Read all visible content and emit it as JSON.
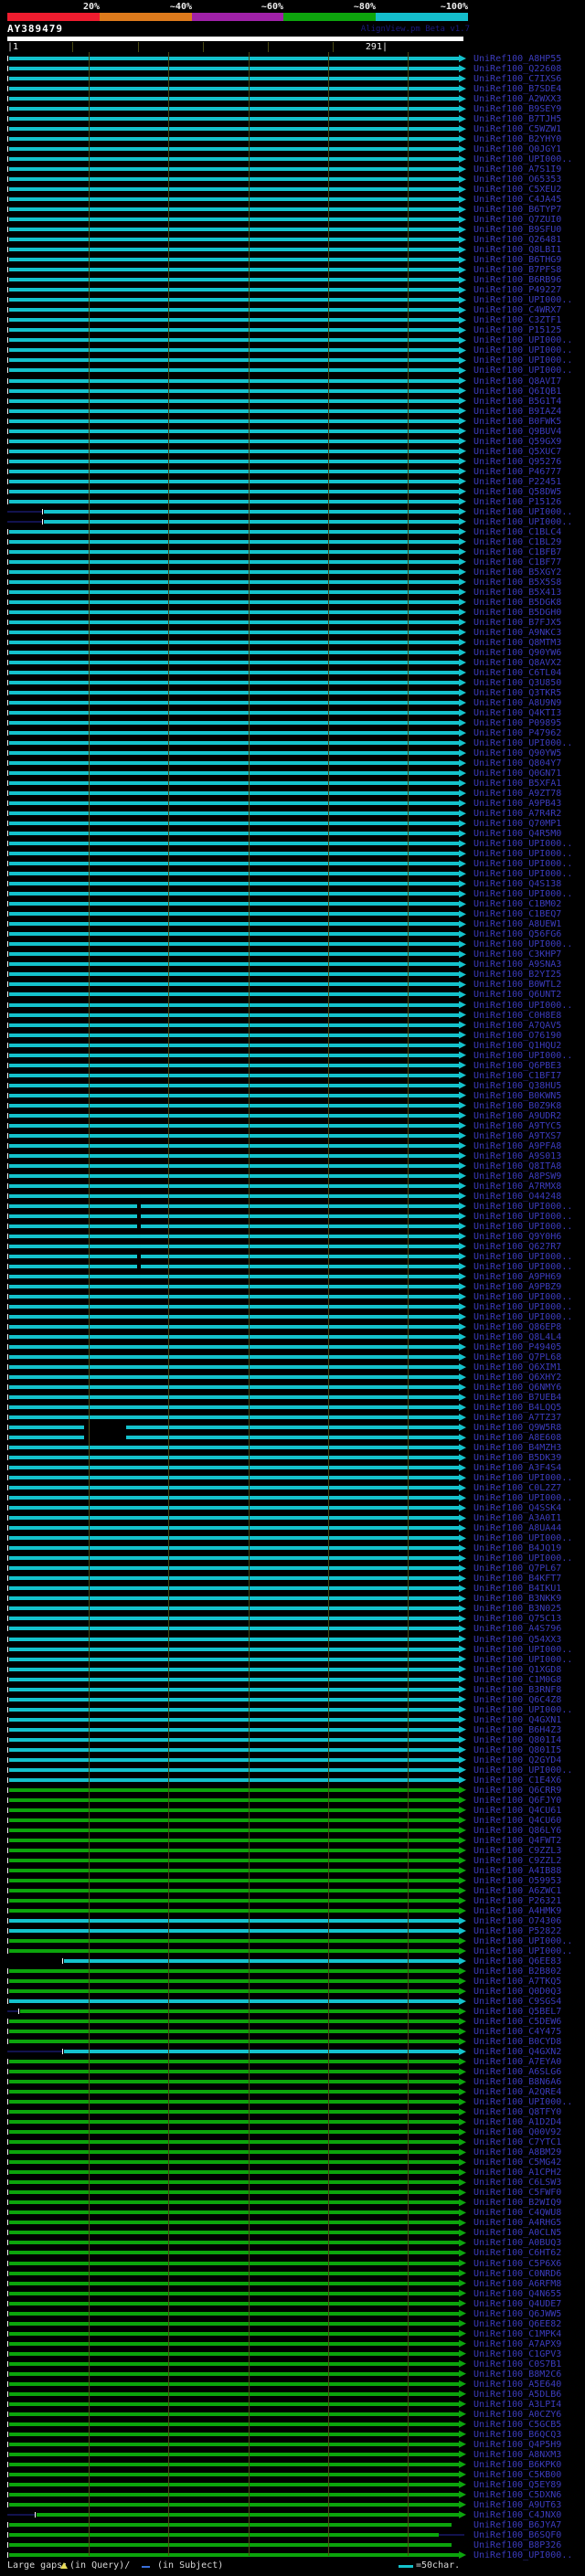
{
  "header": {
    "scale_labels": [
      "20%",
      "~40%",
      "~60%",
      "~80%",
      "~100%"
    ],
    "query_id": "AY389479",
    "credit": "AlignView.pm Beta v1.7",
    "ruler_start": "|1",
    "ruler_end": "291|"
  },
  "legend": {
    "large_gaps": "Large gaps:",
    "in_query": "(in Query)/",
    "in_subject": " (in Subject)",
    "scale_note": "=50char."
  },
  "colors": {
    "scale_red": "#EE1C2E",
    "scale_orange": "#DD7A1C",
    "scale_purple": "#A021A8",
    "scale_green": "#0DA40D",
    "scale_cyan": "#14BECC",
    "bar_cyan": "#14C2CC",
    "bar_green": "#0CA40C",
    "label_blue": "#3C3CBE",
    "credit_blue": "#1A1A7E",
    "grid_olive": "#4A4A14",
    "legend_text": "#D8D8D8",
    "gap_query_yellow": "#E8DC5A",
    "gap_subject_blue": "#3A6FD8",
    "lead_navy": "#12124E"
  },
  "rows": [
    {
      "label": "UniRef100_A8HP55",
      "color": "cyan"
    },
    {
      "label": "UniRef100_Q22608",
      "color": "cyan"
    },
    {
      "label": "UniRef100_C7IXS6",
      "color": "cyan"
    },
    {
      "label": "UniRef100_B7SDE4",
      "color": "cyan"
    },
    {
      "label": "UniRef100_A2WXX3",
      "color": "cyan"
    },
    {
      "label": "UniRef100_B9SEY9",
      "color": "cyan"
    },
    {
      "label": "UniRef100_B7TJH5",
      "color": "cyan"
    },
    {
      "label": "UniRef100_C5WZW1",
      "color": "cyan"
    },
    {
      "label": "UniRef100_B2YHY0",
      "color": "cyan"
    },
    {
      "label": "UniRef100_Q0JGY1",
      "color": "cyan"
    },
    {
      "label": "UniRef100_UPI000..",
      "color": "cyan"
    },
    {
      "label": "UniRef100_A7S1I9",
      "color": "cyan"
    },
    {
      "label": "UniRef100_O65353",
      "color": "cyan"
    },
    {
      "label": "UniRef100_C5XEU2",
      "color": "cyan"
    },
    {
      "label": "UniRef100_C4JA45",
      "color": "cyan"
    },
    {
      "label": "UniRef100_B6TYP7",
      "color": "cyan"
    },
    {
      "label": "UniRef100_Q7ZUI0",
      "color": "cyan"
    },
    {
      "label": "UniRef100_B9SFU0",
      "color": "cyan"
    },
    {
      "label": "UniRef100_Q26481",
      "color": "cyan"
    },
    {
      "label": "UniRef100_Q8LBI1",
      "color": "cyan"
    },
    {
      "label": "UniRef100_B6THG9",
      "color": "cyan"
    },
    {
      "label": "UniRef100_B7PFS8",
      "color": "cyan"
    },
    {
      "label": "UniRef100_B6RB96",
      "color": "cyan"
    },
    {
      "label": "UniRef100_P49227",
      "color": "cyan"
    },
    {
      "label": "UniRef100_UPI000..",
      "color": "cyan"
    },
    {
      "label": "UniRef100_C4WRX7",
      "color": "cyan"
    },
    {
      "label": "UniRef100_C3ZTF1",
      "color": "cyan"
    },
    {
      "label": "UniRef100_P15125",
      "color": "cyan"
    },
    {
      "label": "UniRef100_UPI000..",
      "color": "cyan"
    },
    {
      "label": "UniRef100_UPI000..",
      "color": "cyan"
    },
    {
      "label": "UniRef100_UPI000..",
      "color": "cyan"
    },
    {
      "label": "UniRef100_UPI000..",
      "color": "cyan"
    },
    {
      "label": "UniRef100_Q8AVI7",
      "color": "cyan"
    },
    {
      "label": "UniRef100_Q6IQB1",
      "color": "cyan"
    },
    {
      "label": "UniRef100_B5G1T4",
      "color": "cyan"
    },
    {
      "label": "UniRef100_B9IAZ4",
      "color": "cyan"
    },
    {
      "label": "UniRef100_B0FWK5",
      "color": "cyan"
    },
    {
      "label": "UniRef100_Q9BUV4",
      "color": "cyan"
    },
    {
      "label": "UniRef100_Q59GX9",
      "color": "cyan"
    },
    {
      "label": "UniRef100_Q5XUC7",
      "color": "cyan"
    },
    {
      "label": "UniRef100_Q95276",
      "color": "cyan"
    },
    {
      "label": "UniRef100_P46777",
      "color": "cyan"
    },
    {
      "label": "UniRef100_P22451",
      "color": "cyan"
    },
    {
      "label": "UniRef100_Q58DW5",
      "color": "cyan"
    },
    {
      "label": "UniRef100_P15126",
      "color": "cyan"
    },
    {
      "label": "UniRef100_UPI000..",
      "color": "cyan",
      "start": 48,
      "lead": true
    },
    {
      "label": "UniRef100_UPI000..",
      "color": "cyan",
      "start": 48,
      "lead": true
    },
    {
      "label": "UniRef100_C1BLC4",
      "color": "cyan"
    },
    {
      "label": "UniRef100_C1BL29",
      "color": "cyan"
    },
    {
      "label": "UniRef100_C1BFB7",
      "color": "cyan"
    },
    {
      "label": "UniRef100_C1BF77",
      "color": "cyan"
    },
    {
      "label": "UniRef100_B5XGY2",
      "color": "cyan"
    },
    {
      "label": "UniRef100_B5X5S8",
      "color": "cyan"
    },
    {
      "label": "UniRef100_B5X413",
      "color": "cyan"
    },
    {
      "label": "UniRef100_B5DGK8",
      "color": "cyan"
    },
    {
      "label": "UniRef100_B5DGH0",
      "color": "cyan"
    },
    {
      "label": "UniRef100_B7FJX5",
      "color": "cyan"
    },
    {
      "label": "UniRef100_A9NKC3",
      "color": "cyan"
    },
    {
      "label": "UniRef100_Q8MTM3",
      "color": "cyan"
    },
    {
      "label": "UniRef100_Q90YW6",
      "color": "cyan"
    },
    {
      "label": "UniRef100_Q8AVX2",
      "color": "cyan"
    },
    {
      "label": "UniRef100_C6TL04",
      "color": "cyan"
    },
    {
      "label": "UniRef100_Q3U850",
      "color": "cyan"
    },
    {
      "label": "UniRef100_Q3TKR5",
      "color": "cyan"
    },
    {
      "label": "UniRef100_A8U9N9",
      "color": "cyan"
    },
    {
      "label": "UniRef100_Q4KTI3",
      "color": "cyan"
    },
    {
      "label": "UniRef100_P09895",
      "color": "cyan"
    },
    {
      "label": "UniRef100_P47962",
      "color": "cyan"
    },
    {
      "label": "UniRef100_UPI000..",
      "color": "cyan"
    },
    {
      "label": "UniRef100_Q90YW5",
      "color": "cyan"
    },
    {
      "label": "UniRef100_Q804Y7",
      "color": "cyan"
    },
    {
      "label": "UniRef100_Q0GN71",
      "color": "cyan"
    },
    {
      "label": "UniRef100_B5XFA1",
      "color": "cyan"
    },
    {
      "label": "UniRef100_A9ZT78",
      "color": "cyan"
    },
    {
      "label": "UniRef100_A9PB43",
      "color": "cyan"
    },
    {
      "label": "UniRef100_A7R4R2",
      "color": "cyan"
    },
    {
      "label": "UniRef100_Q70MP1",
      "color": "cyan"
    },
    {
      "label": "UniRef100_Q4R5M0",
      "color": "cyan"
    },
    {
      "label": "UniRef100_UPI000..",
      "color": "cyan"
    },
    {
      "label": "UniRef100_UPI000..",
      "color": "cyan"
    },
    {
      "label": "UniRef100_UPI000..",
      "color": "cyan"
    },
    {
      "label": "UniRef100_UPI000..",
      "color": "cyan"
    },
    {
      "label": "UniRef100_Q4S138",
      "color": "cyan"
    },
    {
      "label": "UniRef100_UPI000..",
      "color": "cyan"
    },
    {
      "label": "UniRef100_C1BM02",
      "color": "cyan"
    },
    {
      "label": "UniRef100_C1BEQ7",
      "color": "cyan"
    },
    {
      "label": "UniRef100_A8UEW1",
      "color": "cyan"
    },
    {
      "label": "UniRef100_Q56FG6",
      "color": "cyan"
    },
    {
      "label": "UniRef100_UPI000..",
      "color": "cyan"
    },
    {
      "label": "UniRef100_C3KHP7",
      "color": "cyan"
    },
    {
      "label": "UniRef100_A9SNA3",
      "color": "cyan"
    },
    {
      "label": "UniRef100_B2YI25",
      "color": "cyan"
    },
    {
      "label": "UniRef100_B0WTL2",
      "color": "cyan"
    },
    {
      "label": "UniRef100_Q6UNT2",
      "color": "cyan"
    },
    {
      "label": "UniRef100_UPI000..",
      "color": "cyan"
    },
    {
      "label": "UniRef100_C0H8E8",
      "color": "cyan"
    },
    {
      "label": "UniRef100_A7QAV5",
      "color": "cyan"
    },
    {
      "label": "UniRef100_O76190",
      "color": "cyan"
    },
    {
      "label": "UniRef100_Q1HQU2",
      "color": "cyan"
    },
    {
      "label": "UniRef100_UPI000..",
      "color": "cyan"
    },
    {
      "label": "UniRef100_Q6PBE3",
      "color": "cyan"
    },
    {
      "label": "UniRef100_C1BFI7",
      "color": "cyan"
    },
    {
      "label": "UniRef100_Q38HU5",
      "color": "cyan"
    },
    {
      "label": "UniRef100_B0KWN5",
      "color": "cyan"
    },
    {
      "label": "UniRef100_B0Z9K8",
      "color": "cyan"
    },
    {
      "label": "UniRef100_A9UDR2",
      "color": "cyan"
    },
    {
      "label": "UniRef100_A9TYC5",
      "color": "cyan"
    },
    {
      "label": "UniRef100_A9TXS7",
      "color": "cyan"
    },
    {
      "label": "UniRef100_A9PFA8",
      "color": "cyan"
    },
    {
      "label": "UniRef100_A9S013",
      "color": "cyan"
    },
    {
      "label": "UniRef100_Q8ITA8",
      "color": "cyan"
    },
    {
      "label": "UniRef100_A8PSW9",
      "color": "cyan"
    },
    {
      "label": "UniRef100_A7RMX8",
      "color": "cyan"
    },
    {
      "label": "UniRef100_O44248",
      "color": "cyan"
    },
    {
      "label": "UniRef100_UPI000..",
      "color": "cyan",
      "gap": [
        150,
        4
      ]
    },
    {
      "label": "UniRef100_UPI000..",
      "color": "cyan",
      "gap": [
        150,
        4
      ]
    },
    {
      "label": "UniRef100_UPI000..",
      "color": "cyan",
      "gap": [
        150,
        4
      ]
    },
    {
      "label": "UniRef100_Q9Y0H6",
      "color": "cyan"
    },
    {
      "label": "UniRef100_Q627R7",
      "color": "cyan"
    },
    {
      "label": "UniRef100_UPI000..",
      "color": "cyan",
      "gap": [
        150,
        4
      ]
    },
    {
      "label": "UniRef100_UPI000..",
      "color": "cyan",
      "gap": [
        150,
        4
      ]
    },
    {
      "label": "UniRef100_A9PH69",
      "color": "cyan"
    },
    {
      "label": "UniRef100_A9PBZ9",
      "color": "cyan"
    },
    {
      "label": "UniRef100_UPI000..",
      "color": "cyan"
    },
    {
      "label": "UniRef100_UPI000..",
      "color": "cyan"
    },
    {
      "label": "UniRef100_UPI000..",
      "color": "cyan"
    },
    {
      "label": "UniRef100_Q86EP8",
      "color": "cyan"
    },
    {
      "label": "UniRef100_Q8L4L4",
      "color": "cyan"
    },
    {
      "label": "UniRef100_P49405",
      "color": "cyan"
    },
    {
      "label": "UniRef100_Q7PL68",
      "color": "cyan"
    },
    {
      "label": "UniRef100_Q6XIM1",
      "color": "cyan"
    },
    {
      "label": "UniRef100_Q6XHY2",
      "color": "cyan"
    },
    {
      "label": "UniRef100_Q6NMY6",
      "color": "cyan"
    },
    {
      "label": "UniRef100_B7UEB4",
      "color": "cyan"
    },
    {
      "label": "UniRef100_B4LQQ5",
      "color": "cyan"
    },
    {
      "label": "UniRef100_A7TZ37",
      "color": "cyan"
    },
    {
      "label": "UniRef100_Q9W5R8",
      "color": "cyan",
      "gap": [
        92,
        46
      ]
    },
    {
      "label": "UniRef100_A8E608",
      "color": "cyan",
      "gap": [
        92,
        46
      ]
    },
    {
      "label": "UniRef100_B4MZH3",
      "color": "cyan"
    },
    {
      "label": "UniRef100_B5DK39",
      "color": "cyan"
    },
    {
      "label": "UniRef100_A3F4S4",
      "color": "cyan"
    },
    {
      "label": "UniRef100_UPI000..",
      "color": "cyan"
    },
    {
      "label": "UniRef100_C0L2Z7",
      "color": "cyan"
    },
    {
      "label": "UniRef100_UPI000..",
      "color": "cyan"
    },
    {
      "label": "UniRef100_Q4SSK4",
      "color": "cyan"
    },
    {
      "label": "UniRef100_A3A0I1",
      "color": "cyan"
    },
    {
      "label": "UniRef100_A8UA44",
      "color": "cyan"
    },
    {
      "label": "UniRef100_UPI000..",
      "color": "cyan"
    },
    {
      "label": "UniRef100_B4JQ19",
      "color": "cyan"
    },
    {
      "label": "UniRef100_UPI000..",
      "color": "cyan"
    },
    {
      "label": "UniRef100_Q7PL67",
      "color": "cyan"
    },
    {
      "label": "UniRef100_B4KFT7",
      "color": "cyan"
    },
    {
      "label": "UniRef100_B4IKU1",
      "color": "cyan"
    },
    {
      "label": "UniRef100_B3NKK9",
      "color": "cyan"
    },
    {
      "label": "UniRef100_B3N025",
      "color": "cyan"
    },
    {
      "label": "UniRef100_Q75C13",
      "color": "cyan"
    },
    {
      "label": "UniRef100_A4S796",
      "color": "cyan"
    },
    {
      "label": "UniRef100_Q54XX3",
      "color": "cyan"
    },
    {
      "label": "UniRef100_UPI000..",
      "color": "cyan"
    },
    {
      "label": "UniRef100_UPI000..",
      "color": "cyan"
    },
    {
      "label": "UniRef100_Q1XGD8",
      "color": "cyan"
    },
    {
      "label": "UniRef100_C1M0G8",
      "color": "cyan"
    },
    {
      "label": "UniRef100_B3RNF8",
      "color": "cyan"
    },
    {
      "label": "UniRef100_Q6C4Z8",
      "color": "cyan"
    },
    {
      "label": "UniRef100_UPI000..",
      "color": "cyan"
    },
    {
      "label": "UniRef100_Q4GXN1",
      "color": "cyan"
    },
    {
      "label": "UniRef100_B6H4Z3",
      "color": "cyan"
    },
    {
      "label": "UniRef100_Q801I4",
      "color": "cyan"
    },
    {
      "label": "UniRef100_Q801I5",
      "color": "cyan"
    },
    {
      "label": "UniRef100_Q2GYD4",
      "color": "cyan"
    },
    {
      "label": "UniRef100_UPI000..",
      "color": "cyan"
    },
    {
      "label": "UniRef100_C1E4X6",
      "color": "cyan"
    },
    {
      "label": "UniRef100_Q6CRR9",
      "color": "green"
    },
    {
      "label": "UniRef100_Q6FJY0",
      "color": "green"
    },
    {
      "label": "UniRef100_Q4CU61",
      "color": "green"
    },
    {
      "label": "UniRef100_Q4CU60",
      "color": "green"
    },
    {
      "label": "UniRef100_Q86LY6",
      "color": "green"
    },
    {
      "label": "UniRef100_Q4FWT2",
      "color": "green"
    },
    {
      "label": "UniRef100_C9ZZL3",
      "color": "green"
    },
    {
      "label": "UniRef100_C9ZZL2",
      "color": "green"
    },
    {
      "label": "UniRef100_A4IB88",
      "color": "green"
    },
    {
      "label": "UniRef100_O59953",
      "color": "green"
    },
    {
      "label": "UniRef100_A6ZWC1",
      "color": "green"
    },
    {
      "label": "UniRef100_P26321",
      "color": "green"
    },
    {
      "label": "UniRef100_A4HMK9",
      "color": "green"
    },
    {
      "label": "UniRef100_O74306",
      "color": "cyan"
    },
    {
      "label": "UniRef100_P52822",
      "color": "cyan"
    },
    {
      "label": "UniRef100_UPI000..",
      "color": "green"
    },
    {
      "label": "UniRef100_UPI000..",
      "color": "green"
    },
    {
      "label": "UniRef100_Q6EE83",
      "color": "cyan",
      "start": 70
    },
    {
      "label": "UniRef100_B2B802",
      "color": "green"
    },
    {
      "label": "UniRef100_A7TKQ5",
      "color": "green"
    },
    {
      "label": "UniRef100_Q0D0Q3",
      "color": "green"
    },
    {
      "label": "UniRef100_C9SGS4",
      "color": "cyan"
    },
    {
      "label": "UniRef100_Q5BEL7",
      "color": "green",
      "start": 22,
      "lead": true
    },
    {
      "label": "UniRef100_C5DEW6",
      "color": "green"
    },
    {
      "label": "UniRef100_C4Y475",
      "color": "green"
    },
    {
      "label": "UniRef100_B0CYD8",
      "color": "green"
    },
    {
      "label": "UniRef100_Q4GXN2",
      "color": "cyan",
      "start": 70,
      "lead": true
    },
    {
      "label": "UniRef100_A7EYA0",
      "color": "green"
    },
    {
      "label": "UniRef100_A6SLG6",
      "color": "green"
    },
    {
      "label": "UniRef100_B8N6A6",
      "color": "green"
    },
    {
      "label": "UniRef100_A2QRE4",
      "color": "green"
    },
    {
      "label": "UniRef100_UPI000..",
      "color": "green"
    },
    {
      "label": "UniRef100_Q8TFY0",
      "color": "green"
    },
    {
      "label": "UniRef100_A1D2D4",
      "color": "green"
    },
    {
      "label": "UniRef100_Q00V92",
      "color": "green"
    },
    {
      "label": "UniRef100_C7YTC1",
      "color": "green"
    },
    {
      "label": "UniRef100_A8BM29",
      "color": "green"
    },
    {
      "label": "UniRef100_C5MG42",
      "color": "green"
    },
    {
      "label": "UniRef100_A1CPH2",
      "color": "green"
    },
    {
      "label": "UniRef100_C6LSW3",
      "color": "green"
    },
    {
      "label": "UniRef100_C5FWF0",
      "color": "green"
    },
    {
      "label": "UniRef100_B2WIQ9",
      "color": "green"
    },
    {
      "label": "UniRef100_C4QWU8",
      "color": "green"
    },
    {
      "label": "UniRef100_A4RHG5",
      "color": "green"
    },
    {
      "label": "UniRef100_A0CLN5",
      "color": "green"
    },
    {
      "label": "UniRef100_A0BUQ3",
      "color": "green"
    },
    {
      "label": "UniRef100_C6HT62",
      "color": "green"
    },
    {
      "label": "UniRef100_C5P6X6",
      "color": "green"
    },
    {
      "label": "UniRef100_C0NRD6",
      "color": "green"
    },
    {
      "label": "UniRef100_A6RFM8",
      "color": "green"
    },
    {
      "label": "UniRef100_Q4N655",
      "color": "green"
    },
    {
      "label": "UniRef100_Q4UDE7",
      "color": "green"
    },
    {
      "label": "UniRef100_Q6JWW5",
      "color": "green"
    },
    {
      "label": "UniRef100_Q6EE82",
      "color": "green"
    },
    {
      "label": "UniRef100_C1MPK4",
      "color": "green"
    },
    {
      "label": "UniRef100_A7APX9",
      "color": "green"
    },
    {
      "label": "UniRef100_C1GPV3",
      "color": "green"
    },
    {
      "label": "UniRef100_C0S7B1",
      "color": "green"
    },
    {
      "label": "UniRef100_B8M2C6",
      "color": "green"
    },
    {
      "label": "UniRef100_A5E640",
      "color": "green"
    },
    {
      "label": "UniRef100_A5DLB6",
      "color": "green"
    },
    {
      "label": "UniRef100_A3LPI4",
      "color": "green"
    },
    {
      "label": "UniRef100_A0CZY6",
      "color": "green"
    },
    {
      "label": "UniRef100_C5GCB5",
      "color": "green"
    },
    {
      "label": "UniRef100_B6QCQ3",
      "color": "green"
    },
    {
      "label": "UniRef100_Q4P5H9",
      "color": "green"
    },
    {
      "label": "UniRef100_A8NXM3",
      "color": "green"
    },
    {
      "label": "UniRef100_B6KPK0",
      "color": "green"
    },
    {
      "label": "UniRef100_C5KB00",
      "color": "green"
    },
    {
      "label": "UniRef100_Q5EY89",
      "color": "green"
    },
    {
      "label": "UniRef100_C5DXN6",
      "color": "green"
    },
    {
      "label": "UniRef100_A9UT63",
      "color": "green"
    },
    {
      "label": "UniRef100_C4JNX0",
      "color": "green",
      "start": 40,
      "lead": true
    },
    {
      "label": "UniRef100_B6JYA7",
      "color": "green",
      "end": 494,
      "arrow": false
    },
    {
      "label": "UniRef100_B6SQF0",
      "color": "green",
      "end": 480,
      "arrow": false,
      "tail": true
    },
    {
      "label": "UniRef100_B8P326",
      "color": "green",
      "end": 494,
      "arrow": false
    },
    {
      "label": "UniRef100_UPI000..",
      "color": "green"
    }
  ]
}
